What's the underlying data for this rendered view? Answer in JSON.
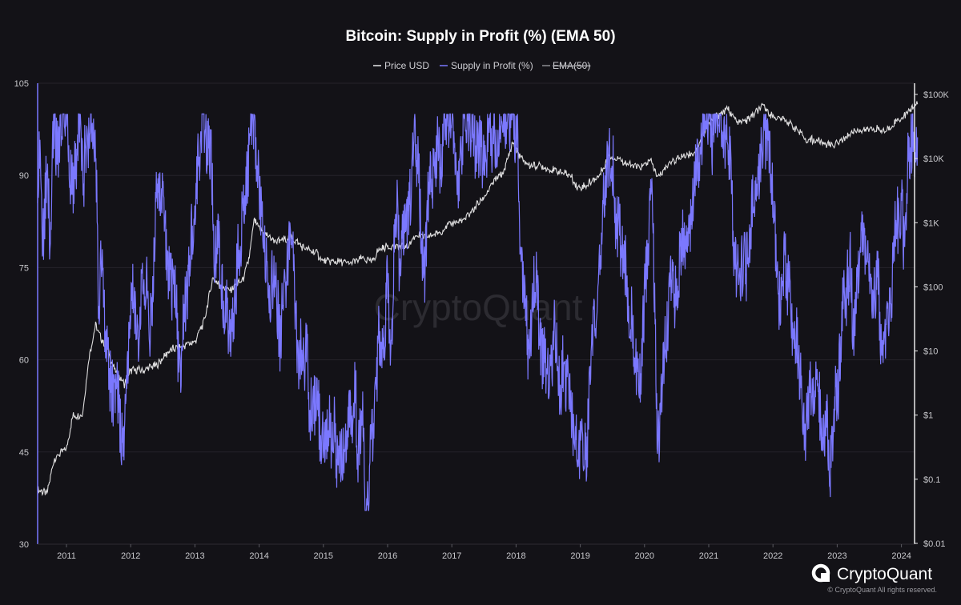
{
  "chart_data": {
    "type": "line",
    "title": "Bitcoin: Supply in Profit (%) (EMA 50)",
    "legend": [
      {
        "name": "Price USD",
        "color": "#e8e8e8",
        "hidden": false
      },
      {
        "name": "Supply in Profit (%)",
        "color": "#7b78ff",
        "hidden": false
      },
      {
        "name": "EMA(50)",
        "color": "#8d8d92",
        "hidden": true
      }
    ],
    "legend_position": "top-center",
    "x_tick_labels": [
      "2011",
      "2012",
      "2013",
      "2014",
      "2015",
      "2016",
      "2017",
      "2018",
      "2019",
      "2020",
      "2021",
      "2022",
      "2023",
      "2024"
    ],
    "xlim": [
      2010.55,
      2024.25
    ],
    "y_left": {
      "ticks": [
        30,
        45,
        60,
        75,
        90,
        105
      ],
      "ylim": [
        30,
        105
      ]
    },
    "y_right": {
      "scale": "log",
      "ticks": [
        "$0.01",
        "$0.1",
        "$1",
        "$10",
        "$100",
        "$1K",
        "$10K",
        "$100K"
      ],
      "tick_values": [
        0.01,
        0.1,
        1,
        10,
        100,
        1000,
        10000,
        100000
      ],
      "ylim": [
        0.01,
        100000
      ]
    },
    "grid": true,
    "series": [
      {
        "name": "Price USD",
        "axis": "right",
        "points": [
          [
            2010.55,
            0.07
          ],
          [
            2010.7,
            0.06
          ],
          [
            2010.8,
            0.2
          ],
          [
            2010.9,
            0.25
          ],
          [
            2011.0,
            0.3
          ],
          [
            2011.1,
            1.0
          ],
          [
            2011.25,
            1.0
          ],
          [
            2011.35,
            8
          ],
          [
            2011.45,
            25
          ],
          [
            2011.55,
            15
          ],
          [
            2011.65,
            10
          ],
          [
            2011.75,
            5
          ],
          [
            2011.9,
            3
          ],
          [
            2012.0,
            5
          ],
          [
            2012.2,
            5
          ],
          [
            2012.4,
            6
          ],
          [
            2012.6,
            10
          ],
          [
            2012.8,
            12
          ],
          [
            2013.0,
            14
          ],
          [
            2013.15,
            30
          ],
          [
            2013.28,
            140
          ],
          [
            2013.4,
            100
          ],
          [
            2013.55,
            90
          ],
          [
            2013.75,
            130
          ],
          [
            2013.85,
            300
          ],
          [
            2013.92,
            1100
          ],
          [
            2014.0,
            800
          ],
          [
            2014.15,
            600
          ],
          [
            2014.3,
            500
          ],
          [
            2014.5,
            600
          ],
          [
            2014.7,
            400
          ],
          [
            2014.9,
            330
          ],
          [
            2015.0,
            250
          ],
          [
            2015.2,
            250
          ],
          [
            2015.4,
            230
          ],
          [
            2015.6,
            280
          ],
          [
            2015.75,
            240
          ],
          [
            2015.85,
            360
          ],
          [
            2016.0,
            430
          ],
          [
            2016.3,
            420
          ],
          [
            2016.45,
            650
          ],
          [
            2016.6,
            600
          ],
          [
            2016.8,
            700
          ],
          [
            2017.0,
            1000
          ],
          [
            2017.2,
            1100
          ],
          [
            2017.35,
            1700
          ],
          [
            2017.5,
            2500
          ],
          [
            2017.65,
            4300
          ],
          [
            2017.8,
            6000
          ],
          [
            2017.95,
            18000
          ],
          [
            2018.05,
            11000
          ],
          [
            2018.2,
            8000
          ],
          [
            2018.4,
            7500
          ],
          [
            2018.6,
            6500
          ],
          [
            2018.85,
            5500
          ],
          [
            2018.95,
            3500
          ],
          [
            2019.1,
            3800
          ],
          [
            2019.3,
            5500
          ],
          [
            2019.45,
            11000
          ],
          [
            2019.6,
            10000
          ],
          [
            2019.75,
            8000
          ],
          [
            2019.95,
            7200
          ],
          [
            2020.1,
            9500
          ],
          [
            2020.2,
            5000
          ],
          [
            2020.4,
            9000
          ],
          [
            2020.6,
            11000
          ],
          [
            2020.8,
            13000
          ],
          [
            2020.95,
            29000
          ],
          [
            2021.1,
            45000
          ],
          [
            2021.3,
            60000
          ],
          [
            2021.45,
            35000
          ],
          [
            2021.6,
            40000
          ],
          [
            2021.85,
            65000
          ],
          [
            2022.0,
            45000
          ],
          [
            2022.2,
            40000
          ],
          [
            2022.35,
            30000
          ],
          [
            2022.5,
            20000
          ],
          [
            2022.7,
            19000
          ],
          [
            2022.88,
            16500
          ],
          [
            2023.0,
            17000
          ],
          [
            2023.15,
            23000
          ],
          [
            2023.3,
            28000
          ],
          [
            2023.6,
            29000
          ],
          [
            2023.75,
            26000
          ],
          [
            2023.9,
            37000
          ],
          [
            2024.0,
            43000
          ],
          [
            2024.1,
            52000
          ],
          [
            2024.2,
            68000
          ]
        ]
      },
      {
        "name": "Supply in Profit (%)",
        "axis": "left",
        "points": [
          [
            2010.55,
            95
          ],
          [
            2010.6,
            87
          ],
          [
            2010.65,
            82
          ],
          [
            2010.7,
            93
          ],
          [
            2010.75,
            78
          ],
          [
            2010.8,
            98
          ],
          [
            2010.9,
            96
          ],
          [
            2011.0,
            99
          ],
          [
            2011.1,
            85
          ],
          [
            2011.2,
            97
          ],
          [
            2011.27,
            90
          ],
          [
            2011.33,
            98
          ],
          [
            2011.45,
            96
          ],
          [
            2011.5,
            70
          ],
          [
            2011.55,
            80
          ],
          [
            2011.6,
            65
          ],
          [
            2011.68,
            60
          ],
          [
            2011.75,
            55
          ],
          [
            2011.85,
            47
          ],
          [
            2011.92,
            52
          ],
          [
            2012.0,
            70
          ],
          [
            2012.1,
            62
          ],
          [
            2012.2,
            73
          ],
          [
            2012.3,
            65
          ],
          [
            2012.4,
            85
          ],
          [
            2012.5,
            88
          ],
          [
            2012.6,
            76
          ],
          [
            2012.68,
            72
          ],
          [
            2012.75,
            58
          ],
          [
            2012.85,
            67
          ],
          [
            2012.95,
            82
          ],
          [
            2013.05,
            95
          ],
          [
            2013.15,
            99
          ],
          [
            2013.25,
            98
          ],
          [
            2013.3,
            75
          ],
          [
            2013.35,
            82
          ],
          [
            2013.45,
            70
          ],
          [
            2013.55,
            65
          ],
          [
            2013.65,
            74
          ],
          [
            2013.75,
            85
          ],
          [
            2013.85,
            98
          ],
          [
            2013.92,
            100
          ],
          [
            2014.0,
            90
          ],
          [
            2014.1,
            78
          ],
          [
            2014.15,
            70
          ],
          [
            2014.2,
            74
          ],
          [
            2014.3,
            65
          ],
          [
            2014.4,
            70
          ],
          [
            2014.5,
            78
          ],
          [
            2014.6,
            65
          ],
          [
            2014.7,
            60
          ],
          [
            2014.8,
            55
          ],
          [
            2014.9,
            52
          ],
          [
            2015.0,
            47
          ],
          [
            2015.05,
            44
          ],
          [
            2015.1,
            50
          ],
          [
            2015.2,
            48
          ],
          [
            2015.3,
            45
          ],
          [
            2015.4,
            47
          ],
          [
            2015.5,
            52
          ],
          [
            2015.55,
            45
          ],
          [
            2015.62,
            46
          ],
          [
            2015.65,
            37
          ],
          [
            2015.75,
            46
          ],
          [
            2015.85,
            60
          ],
          [
            2015.95,
            65
          ],
          [
            2016.0,
            70
          ],
          [
            2016.05,
            60
          ],
          [
            2016.12,
            85
          ],
          [
            2016.2,
            75
          ],
          [
            2016.3,
            82
          ],
          [
            2016.42,
            95
          ],
          [
            2016.5,
            85
          ],
          [
            2016.58,
            72
          ],
          [
            2016.65,
            88
          ],
          [
            2016.75,
            90
          ],
          [
            2016.85,
            98
          ],
          [
            2016.95,
            99
          ],
          [
            2017.0,
            97
          ],
          [
            2017.1,
            90
          ],
          [
            2017.2,
            99
          ],
          [
            2017.3,
            100
          ],
          [
            2017.4,
            95
          ],
          [
            2017.5,
            90
          ],
          [
            2017.6,
            99
          ],
          [
            2017.7,
            92
          ],
          [
            2017.8,
            99
          ],
          [
            2017.9,
            100
          ],
          [
            2018.0,
            98
          ],
          [
            2018.05,
            85
          ],
          [
            2018.1,
            72
          ],
          [
            2018.2,
            65
          ],
          [
            2018.3,
            72
          ],
          [
            2018.4,
            63
          ],
          [
            2018.5,
            58
          ],
          [
            2018.6,
            62
          ],
          [
            2018.7,
            56
          ],
          [
            2018.8,
            58
          ],
          [
            2018.9,
            48
          ],
          [
            2019.0,
            45
          ],
          [
            2019.05,
            41
          ],
          [
            2019.1,
            47
          ],
          [
            2019.15,
            55
          ],
          [
            2019.25,
            70
          ],
          [
            2019.35,
            82
          ],
          [
            2019.45,
            94
          ],
          [
            2019.5,
            90
          ],
          [
            2019.55,
            85
          ],
          [
            2019.6,
            80
          ],
          [
            2019.7,
            75
          ],
          [
            2019.78,
            68
          ],
          [
            2019.85,
            58
          ],
          [
            2019.95,
            62
          ],
          [
            2020.05,
            75
          ],
          [
            2020.12,
            90
          ],
          [
            2020.2,
            45
          ],
          [
            2020.3,
            60
          ],
          [
            2020.4,
            72
          ],
          [
            2020.5,
            70
          ],
          [
            2020.6,
            80
          ],
          [
            2020.7,
            82
          ],
          [
            2020.85,
            90
          ],
          [
            2020.95,
            100
          ],
          [
            2021.05,
            99
          ],
          [
            2021.15,
            96
          ],
          [
            2021.25,
            99
          ],
          [
            2021.35,
            92
          ],
          [
            2021.42,
            75
          ],
          [
            2021.5,
            70
          ],
          [
            2021.6,
            80
          ],
          [
            2021.7,
            85
          ],
          [
            2021.8,
            94
          ],
          [
            2021.9,
            99
          ],
          [
            2022.0,
            88
          ],
          [
            2022.05,
            75
          ],
          [
            2022.1,
            70
          ],
          [
            2022.15,
            75
          ],
          [
            2022.2,
            78
          ],
          [
            2022.3,
            68
          ],
          [
            2022.38,
            60
          ],
          [
            2022.45,
            55
          ],
          [
            2022.5,
            50
          ],
          [
            2022.6,
            54
          ],
          [
            2022.7,
            52
          ],
          [
            2022.8,
            48
          ],
          [
            2022.9,
            46
          ],
          [
            2023.0,
            55
          ],
          [
            2023.05,
            64
          ],
          [
            2023.1,
            68
          ],
          [
            2023.2,
            75
          ],
          [
            2023.25,
            66
          ],
          [
            2023.3,
            72
          ],
          [
            2023.4,
            78
          ],
          [
            2023.5,
            75
          ],
          [
            2023.58,
            69
          ],
          [
            2023.65,
            72
          ],
          [
            2023.7,
            62
          ],
          [
            2023.75,
            60
          ],
          [
            2023.85,
            68
          ],
          [
            2023.9,
            80
          ],
          [
            2024.0,
            86
          ],
          [
            2024.05,
            78
          ],
          [
            2024.1,
            90
          ],
          [
            2024.18,
            96
          ],
          [
            2024.22,
            88
          ],
          [
            2024.25,
            92
          ]
        ]
      }
    ]
  },
  "watermark": "CryptoQuant",
  "branding": {
    "logo_text": "CryptoQuant",
    "copyright": "© CryptoQuant All rights reserved."
  }
}
